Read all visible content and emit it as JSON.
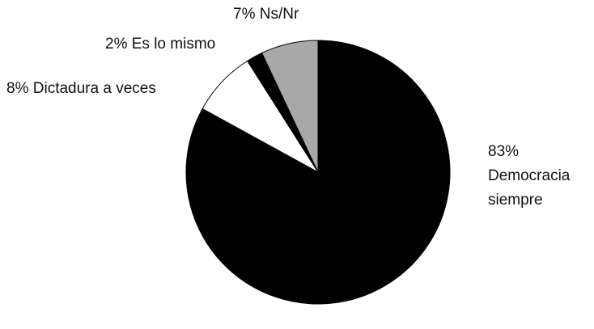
{
  "chart_data": {
    "type": "pie",
    "categories": [
      "Democracia siempre",
      "Dictadura a veces",
      "Es lo mismo",
      "Ns/Nr"
    ],
    "values": [
      83,
      8,
      2,
      7
    ],
    "value_labels": [
      "83%",
      "8%",
      "2%",
      "7%"
    ],
    "colors": [
      "#000000",
      "#ffffff",
      "#000000",
      "#a8a8a8"
    ]
  }
}
